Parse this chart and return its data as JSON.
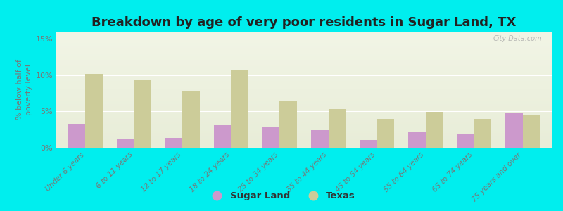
{
  "title": "Breakdown by age of very poor residents in Sugar Land, TX",
  "ylabel": "% below half of\npoverty level",
  "categories": [
    "Under 6 years",
    "6 to 11 years",
    "12 to 17 years",
    "18 to 24 years",
    "25 to 34 years",
    "35 to 44 years",
    "45 to 54 years",
    "55 to 64 years",
    "65 to 74 years",
    "75 years and over"
  ],
  "sugar_land": [
    3.2,
    1.3,
    1.4,
    3.1,
    2.8,
    2.4,
    1.1,
    2.2,
    1.9,
    4.8
  ],
  "texas": [
    10.2,
    9.3,
    7.8,
    10.7,
    6.4,
    5.3,
    4.0,
    4.9,
    4.0,
    4.5
  ],
  "sugar_land_color": "#cc99cc",
  "texas_color": "#cccc99",
  "background_outer": "#00eeee",
  "background_plot_top": "#f2f5e6",
  "background_plot_bottom": "#e8edd8",
  "title_fontsize": 13,
  "ylabel_fontsize": 8,
  "ylim": [
    0,
    16
  ],
  "yticks": [
    0,
    5,
    10,
    15
  ],
  "ytick_labels": [
    "0%",
    "5%",
    "10%",
    "15%"
  ],
  "watermark": "City-Data.com",
  "legend_sugar_land": "Sugar Land",
  "legend_texas": "Texas",
  "bar_width": 0.35
}
